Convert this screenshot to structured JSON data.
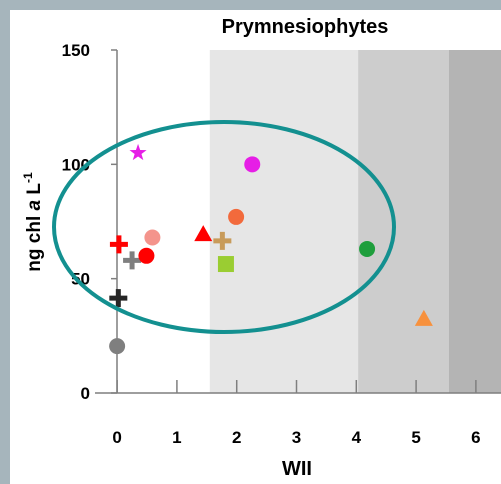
{
  "chart_data": {
    "type": "scatter",
    "title": "Prymnesiophytes",
    "xlabel": "WII",
    "ylabel": {
      "pre": "ng chl ",
      "italic": "a",
      "post": " L",
      "sup": "-1"
    },
    "xlim": [
      -0.37,
      6.42
    ],
    "ylim": [
      0,
      150
    ],
    "xticks": [
      0,
      1,
      2,
      3,
      4,
      5,
      6
    ],
    "yticks": [
      0,
      50,
      100,
      150
    ],
    "bands": [
      {
        "x0": 1.55,
        "x1": 4.03,
        "color": "#e6e6e6"
      },
      {
        "x0": 4.03,
        "x1": 5.55,
        "color": "#cdcdcd"
      },
      {
        "x0": 5.55,
        "x1": 6.42,
        "color": "#b4b4b4"
      }
    ],
    "series": [
      {
        "marker": "star",
        "color": "#e61ee6",
        "x": [
          0.35
        ],
        "y": [
          105
        ]
      },
      {
        "marker": "circle",
        "color": "#e61ee6",
        "x": [
          2.26
        ],
        "y": [
          100
        ]
      },
      {
        "marker": "plus",
        "color": "#ff0000",
        "x": [
          0.03
        ],
        "y": [
          65
        ]
      },
      {
        "marker": "circle",
        "color": "#f4948c",
        "x": [
          0.59
        ],
        "y": [
          68
        ]
      },
      {
        "marker": "plus",
        "color": "#7f7f7f",
        "x": [
          0.25
        ],
        "y": [
          58
        ]
      },
      {
        "marker": "circle",
        "color": "#ff0000",
        "x": [
          0.49
        ],
        "y": [
          60
        ]
      },
      {
        "marker": "plus",
        "color": "#262626",
        "x": [
          0.02
        ],
        "y": [
          41.5
        ]
      },
      {
        "marker": "circle",
        "color": "#7f7f7f",
        "x": [
          0
        ],
        "y": [
          20.5
        ]
      },
      {
        "marker": "triangle",
        "color": "#ff0000",
        "x": [
          1.44
        ],
        "y": [
          69.5
        ]
      },
      {
        "marker": "plus",
        "color": "#c89b5a",
        "x": [
          1.76
        ],
        "y": [
          66.5
        ]
      },
      {
        "marker": "circle",
        "color": "#f26a3c",
        "x": [
          1.99
        ],
        "y": [
          77
        ]
      },
      {
        "marker": "square",
        "color": "#9acd32",
        "x": [
          1.82
        ],
        "y": [
          56.4
        ]
      },
      {
        "marker": "circle",
        "color": "#1e9e3c",
        "x": [
          4.18
        ],
        "y": [
          63
        ]
      },
      {
        "marker": "triangle",
        "color": "#f7913d",
        "x": [
          5.13
        ],
        "y": [
          32.4
        ]
      }
    ]
  }
}
